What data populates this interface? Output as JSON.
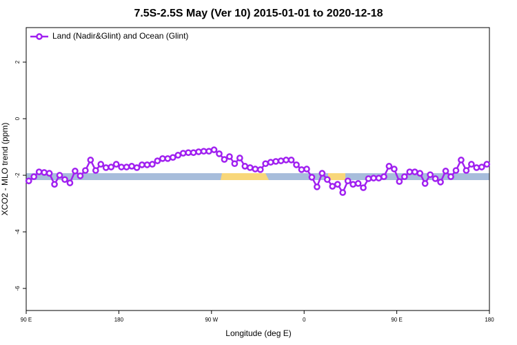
{
  "chart_data": {
    "type": "line",
    "title": "7.5S-2.5S May (Ver 10)   2015-01-01 to 2020-12-18",
    "x_label": "Longitude (deg E)",
    "y_label": "XCO2 - MLO trend (ppm)",
    "legend_position": "top-left",
    "xlim": [
      -270,
      180
    ],
    "ylim": [
      -6.78,
      3.22
    ],
    "xticks": [
      {
        "value": -270,
        "label": "90 E"
      },
      {
        "value": -180,
        "label": "180"
      },
      {
        "value": -90,
        "label": "90 W"
      },
      0,
      {
        "value": 90,
        "label": "90 E"
      },
      180
    ],
    "yticks": [
      2,
      0,
      -2,
      -4,
      -6
    ],
    "x": [
      -267.5,
      -262.5,
      -257.5,
      -252.5,
      -247.5,
      -242.5,
      -237.5,
      -232.5,
      -227.5,
      -222.5,
      -217.5,
      -212.5,
      -207.5,
      -202.5,
      -197.5,
      -192.5,
      -187.5,
      -182.5,
      -177.5,
      -172.5,
      -167.5,
      -162.5,
      -157.5,
      -152.5,
      -147.5,
      -142.5,
      -137.5,
      -132.5,
      -127.5,
      -122.5,
      -117.5,
      -112.5,
      -107.5,
      -102.5,
      -97.5,
      -92.5,
      -87.5,
      -82.5,
      -77.5,
      -72.5,
      -67.5,
      -62.5,
      -57.5,
      -52.5,
      -47.5,
      -42.5,
      -37.5,
      -32.5,
      -27.5,
      -22.5,
      -17.5,
      -12.5,
      -7.5,
      -2.5,
      2.5,
      7.5,
      12.5,
      17.5,
      22.5,
      27.5,
      32.5,
      37.5,
      42.5,
      47.5,
      52.5,
      57.5,
      62.5,
      67.5,
      72.5,
      77.5,
      82.5,
      87.5,
      92.5,
      97.5,
      102.5,
      107.5,
      112.5,
      117.5,
      122.5,
      127.5,
      132.5,
      137.5,
      142.5,
      147.5,
      152.5,
      157.5,
      162.5,
      167.5,
      172.5,
      177.5
    ],
    "series": [
      {
        "name": "Land (Nadir&Glint) and Ocean (Glint)",
        "color": "#a020f0",
        "values": [
          -2.2,
          -2.05,
          -1.88,
          -1.9,
          -1.93,
          -2.32,
          -2.0,
          -2.15,
          -2.27,
          -1.85,
          -2.02,
          -1.83,
          -1.46,
          -1.83,
          -1.61,
          -1.73,
          -1.71,
          -1.61,
          -1.71,
          -1.71,
          -1.68,
          -1.73,
          -1.63,
          -1.63,
          -1.61,
          -1.49,
          -1.41,
          -1.41,
          -1.37,
          -1.29,
          -1.22,
          -1.2,
          -1.2,
          -1.17,
          -1.15,
          -1.15,
          -1.1,
          -1.24,
          -1.44,
          -1.34,
          -1.59,
          -1.39,
          -1.68,
          -1.73,
          -1.78,
          -1.8,
          -1.59,
          -1.54,
          -1.51,
          -1.49,
          -1.46,
          -1.46,
          -1.63,
          -1.8,
          -1.78,
          -2.07,
          -2.41,
          -1.93,
          -2.15,
          -2.39,
          -2.32,
          -2.61,
          -2.2,
          -2.32,
          -2.29,
          -2.44,
          -2.12,
          -2.1,
          -2.1,
          -2.05,
          -1.68,
          -1.78,
          -2.22,
          -2.05,
          -1.88,
          -1.88,
          -1.93,
          -2.29,
          -1.98,
          -2.12,
          -2.24,
          -1.85,
          -2.05,
          -1.83,
          -1.46,
          -1.83,
          -1.61,
          -1.73,
          -1.71,
          -1.61
        ]
      }
    ]
  }
}
